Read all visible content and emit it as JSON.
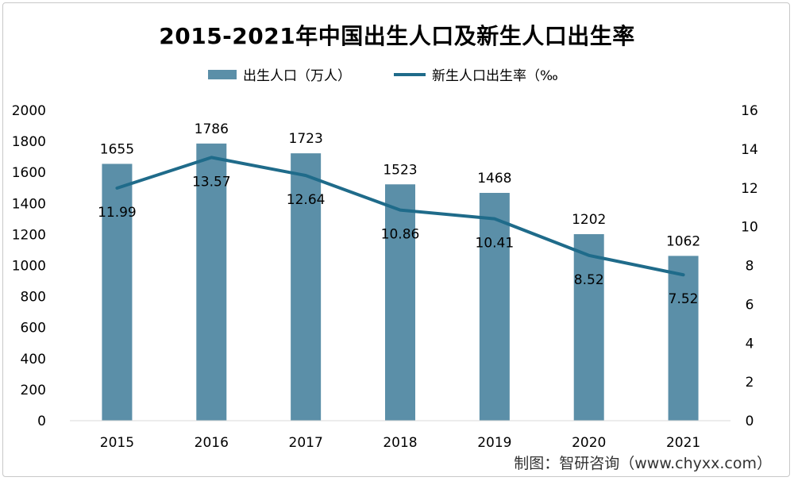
{
  "chart_data": {
    "type": "bar+line",
    "title": "2015-2021年中国出生人口及新生人口出生率",
    "categories": [
      "2015",
      "2016",
      "2017",
      "2018",
      "2019",
      "2020",
      "2021"
    ],
    "series": [
      {
        "name": "出生人口（万人）",
        "type": "bar",
        "axis": "left",
        "color": "#5b8fa8",
        "values": [
          1655,
          1786,
          1723,
          1523,
          1468,
          1202,
          1062
        ]
      },
      {
        "name": "新生人口出生率（‰",
        "type": "line",
        "axis": "right",
        "color": "#1f6b8a",
        "values": [
          11.99,
          13.57,
          12.64,
          10.86,
          10.41,
          8.52,
          7.52
        ]
      }
    ],
    "y_left": {
      "min": 0,
      "max": 2000,
      "step": 200
    },
    "y_right": {
      "min": 0,
      "max": 16,
      "step": 2
    },
    "legend_position": "top",
    "grid": false
  },
  "footer": "制图：智研咨询（www.chyxx.com）"
}
